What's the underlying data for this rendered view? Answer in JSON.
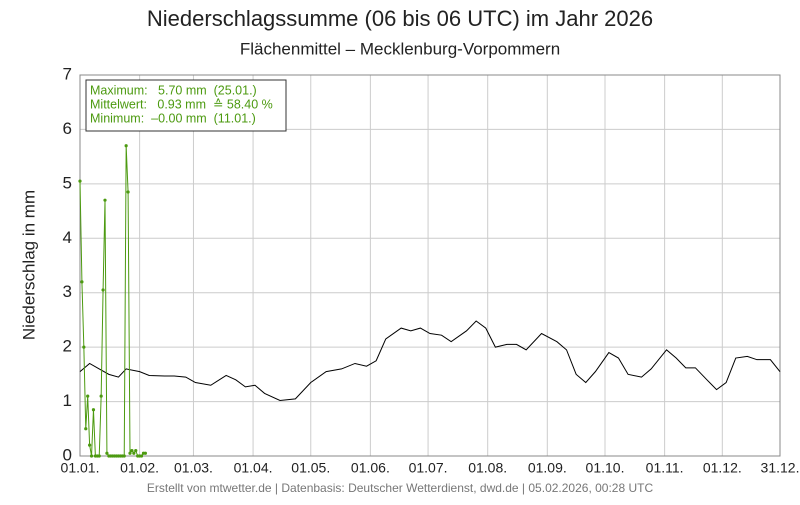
{
  "chart_data": {
    "type": "line",
    "title": "Niederschlagssumme (06 bis 06 UTC) im Jahr 2026",
    "subtitle": "Flächenmittel – Mecklenburg-Vorpommern",
    "y_label": "Niederschlag in mm",
    "footer": "Erstellt von mtwetter.de | Datenbasis: Deutscher Wetterdienst, dwd.de | 05.02.2026, 00:28 UTC",
    "annotations": [
      "Maximum:   5.70 mm  (25.01.)",
      "Mittelwert:   0.93 mm  ≙ 58.40 %",
      "Minimum:  –0.00 mm  (11.01.)"
    ],
    "xlim": [
      1,
      365
    ],
    "xticks": [
      {
        "value": 1,
        "label": "01.01."
      },
      {
        "value": 32,
        "label": "01.02."
      },
      {
        "value": 60,
        "label": "01.03."
      },
      {
        "value": 91,
        "label": "01.04."
      },
      {
        "value": 121,
        "label": "01.05."
      },
      {
        "value": 152,
        "label": "01.06."
      },
      {
        "value": 182,
        "label": "01.07."
      },
      {
        "value": 213,
        "label": "01.08."
      },
      {
        "value": 244,
        "label": "01.09."
      },
      {
        "value": 274,
        "label": "01.10."
      },
      {
        "value": 305,
        "label": "01.11."
      },
      {
        "value": 335,
        "label": "01.12."
      },
      {
        "value": 365,
        "label": "31.12."
      }
    ],
    "ylim": [
      0,
      7
    ],
    "yticks": [
      0,
      1,
      2,
      3,
      4,
      5,
      6,
      7
    ],
    "grid": true,
    "series": [
      {
        "color": "#000000",
        "markers": false,
        "x": [
          1,
          6,
          11,
          16,
          21,
          25,
          32,
          37,
          45,
          50,
          56,
          61,
          69,
          77,
          82,
          87,
          92,
          97,
          105,
          113,
          121,
          129,
          137,
          144,
          150,
          155,
          160,
          168,
          173,
          178,
          183,
          189,
          194,
          202,
          207,
          212,
          217,
          223,
          228,
          233,
          241,
          249,
          254,
          259,
          264,
          269,
          276,
          281,
          286,
          293,
          298,
          306,
          311,
          316,
          321,
          327,
          332,
          337,
          342,
          348,
          353,
          360,
          365
        ],
        "values": [
          1.55,
          1.7,
          1.6,
          1.5,
          1.45,
          1.6,
          1.55,
          1.48,
          1.47,
          1.47,
          1.45,
          1.35,
          1.3,
          1.48,
          1.4,
          1.27,
          1.3,
          1.15,
          1.02,
          1.05,
          1.35,
          1.55,
          1.6,
          1.7,
          1.65,
          1.75,
          2.15,
          2.35,
          2.3,
          2.35,
          2.25,
          2.22,
          2.1,
          2.3,
          2.48,
          2.35,
          2.0,
          2.05,
          2.05,
          1.95,
          2.25,
          2.1,
          1.95,
          1.5,
          1.35,
          1.55,
          1.9,
          1.8,
          1.5,
          1.45,
          1.6,
          1.95,
          1.8,
          1.62,
          1.62,
          1.4,
          1.22,
          1.35,
          1.8,
          1.83,
          1.77,
          1.77,
          1.55
        ]
      },
      {
        "color": "#4c9a10",
        "markers": true,
        "x": [
          1,
          2,
          3,
          4,
          5,
          6,
          7,
          8,
          9,
          10,
          11,
          12,
          13,
          14,
          15,
          16,
          17,
          18,
          19,
          20,
          21,
          22,
          23,
          24,
          25,
          26,
          27,
          28,
          29,
          30,
          31,
          32,
          33,
          34,
          35
        ],
        "values": [
          5.05,
          3.2,
          2.0,
          0.5,
          1.1,
          0.2,
          0.0,
          0.85,
          0.0,
          0.0,
          0.0,
          1.1,
          3.05,
          4.7,
          0.05,
          0.0,
          0.0,
          0.0,
          0.0,
          0.0,
          0.0,
          0.0,
          0.0,
          0.0,
          5.7,
          4.85,
          0.05,
          0.1,
          0.05,
          0.1,
          0.0,
          0.0,
          0.0,
          0.05,
          0.05
        ]
      }
    ]
  }
}
